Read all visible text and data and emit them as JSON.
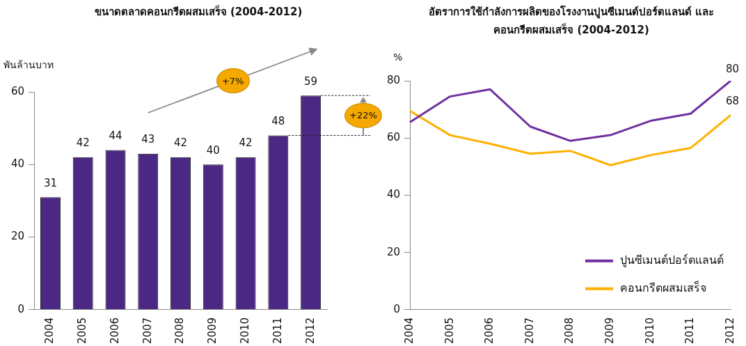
{
  "chart_data": [
    {
      "type": "bar",
      "title": "ขนาดตลาดคอนกรีตผสมเสร็จ (2004-2012)",
      "ylabel": "พันล้านบาท",
      "categories": [
        "2004",
        "2005",
        "2006",
        "2007",
        "2008",
        "2009",
        "2010",
        "2011",
        "2012"
      ],
      "values": [
        31,
        42,
        44,
        43,
        42,
        40,
        42,
        48,
        59
      ],
      "color": "#4b2883",
      "ylim": [
        0,
        60
      ],
      "yticks": [
        0,
        20,
        40,
        60
      ],
      "grid": false,
      "legend": false,
      "data_labels": true,
      "annotations": [
        "+7%",
        "+22%"
      ]
    },
    {
      "type": "line",
      "title": "อัตราการใช้กำลังการผลิตของโรงงานปูนซีเมนต์ปอร์ตแลนด์ และคอนกรีตผสมเสร็จ  (2004-2012)",
      "ylabel": "%",
      "categories": [
        "2004",
        "2005",
        "2006",
        "2007",
        "2008",
        "2009",
        "2010",
        "2011",
        "2012"
      ],
      "series": [
        {
          "name": "ปูนซีเมนต์ปอร์ตแลนด์",
          "color": "#7030a0",
          "values": [
            65.5,
            74.5,
            77,
            64,
            59,
            61,
            66,
            68.5,
            80
          ],
          "value_labels": [
            null,
            null,
            null,
            null,
            null,
            null,
            null,
            null,
            "80"
          ]
        },
        {
          "name": "คอนกรีตผสมเสร็จ",
          "color": "#ffb000",
          "values": [
            69.5,
            61,
            58,
            54.5,
            55.5,
            50.5,
            54,
            56.5,
            68
          ],
          "value_labels": [
            null,
            null,
            null,
            null,
            null,
            null,
            null,
            null,
            "68"
          ]
        }
      ],
      "ylim": [
        0,
        80
      ],
      "yticks": [
        0,
        20,
        40,
        60,
        80
      ],
      "grid": false,
      "legend": "bottom right",
      "marker": "none",
      "line_style": "solid"
    }
  ]
}
